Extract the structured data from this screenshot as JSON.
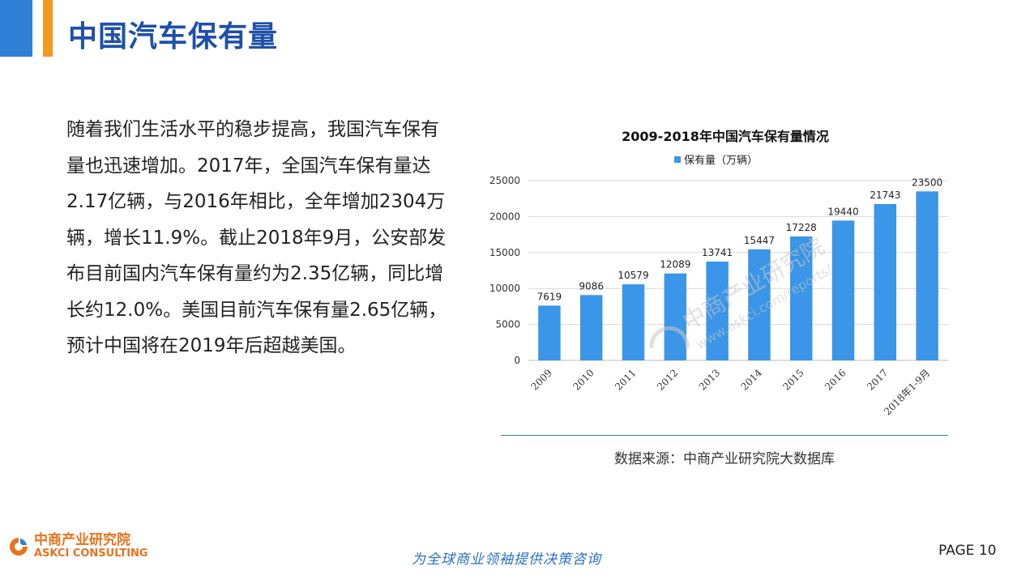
{
  "header": {
    "title": "中国汽车保有量"
  },
  "paragraph": "随着我们生活水平的稳步提高，我国汽车保有量也迅速增加。2017年，全国汽车保有量达2.17亿辆，与2016年相比，全年增加2304万辆，增长11.9%。截止2018年9月，公安部发布目前国内汽车保有量约为2.35亿辆，同比增长约12.0%。美国目前汽车保有量2.65亿辆，预计中国将在2019年后超越美国。",
  "chart_data": {
    "type": "bar",
    "title": "2009-2018年中国汽车保有量情况",
    "categories": [
      "2009",
      "2010",
      "2011",
      "2012",
      "2013",
      "2014",
      "2015",
      "2016",
      "2017",
      "2018年1-9月"
    ],
    "series": [
      {
        "name": "保有量（万辆）",
        "values": [
          7619,
          9086,
          10579,
          12089,
          13741,
          15447,
          17228,
          19440,
          21743,
          23500
        ]
      }
    ],
    "yticks": [
      "0",
      "5000",
      "10000",
      "15000",
      "20000",
      "25000"
    ],
    "ylim": [
      0,
      25000
    ],
    "grid": true,
    "legend": "top",
    "bar_color": "#3b95e8"
  },
  "source": "数据来源：中商产业研究院大数据库",
  "watermark": {
    "cn": "中商产业研究院",
    "url": "www.askci.com/reports/"
  },
  "footer": {
    "logo_cn": "中商产业研究院",
    "logo_en": "ASKCI CONSULTING",
    "slogan": "为全球商业领袖提供决策咨询",
    "page": "PAGE  10"
  },
  "colors": {
    "accent_blue": "#2f7fd6",
    "accent_orange": "#f39a1e",
    "title_blue": "#1f4fa8",
    "logo_orange": "#e8731c"
  }
}
